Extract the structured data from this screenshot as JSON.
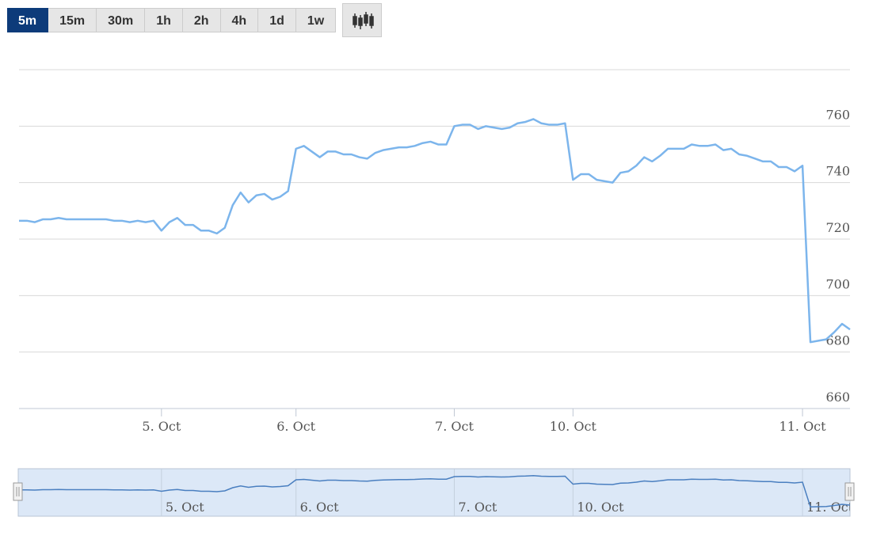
{
  "toolbar": {
    "buttons": [
      "5m",
      "15m",
      "30m",
      "1h",
      "2h",
      "4h",
      "1d",
      "1w"
    ]
  },
  "chart_data": {
    "type": "line",
    "color": "#7cb5ec",
    "categories": [
      null,
      null,
      null,
      null,
      null,
      null,
      null,
      null,
      null,
      null,
      null,
      null,
      null,
      null,
      null,
      null,
      null,
      null,
      "5. Oct",
      null,
      null,
      null,
      null,
      null,
      null,
      null,
      null,
      null,
      null,
      null,
      null,
      null,
      null,
      null,
      null,
      "6. Oct",
      null,
      null,
      null,
      null,
      null,
      null,
      null,
      null,
      null,
      null,
      null,
      null,
      null,
      null,
      null,
      null,
      null,
      null,
      null,
      "7. Oct",
      null,
      null,
      null,
      null,
      null,
      null,
      null,
      null,
      null,
      null,
      null,
      null,
      null,
      null,
      "10. Oct",
      null,
      null,
      null,
      null,
      null,
      null,
      null,
      null,
      null,
      null,
      null,
      null,
      null,
      null,
      null,
      null,
      null,
      null,
      null,
      null,
      null,
      null,
      null,
      null,
      null,
      null,
      null,
      null,
      "11. Oct",
      null,
      null,
      null,
      null,
      null,
      null
    ],
    "values": [
      726.5,
      726.5,
      726,
      727,
      727,
      727.5,
      727,
      727,
      727,
      727,
      727,
      727,
      726.5,
      726.5,
      726,
      726.5,
      726,
      726.5,
      723,
      726,
      727.5,
      725,
      725,
      723,
      723,
      722,
      724,
      732,
      736.5,
      733,
      735.5,
      736,
      734,
      735,
      737,
      752,
      753,
      751,
      749,
      751,
      751,
      750,
      750,
      749,
      748.5,
      750.5,
      751.5,
      752,
      752.5,
      752.5,
      753,
      754,
      754.5,
      753.5,
      753.5,
      760,
      760.5,
      760.5,
      759,
      760,
      759.5,
      759,
      759.5,
      761,
      761.5,
      762.5,
      761,
      760.5,
      760.5,
      761,
      741,
      743,
      743,
      741,
      740.5,
      740,
      743.5,
      744,
      746,
      749,
      747.5,
      749.5,
      752,
      752,
      752,
      753.5,
      753,
      753,
      753.5,
      751.5,
      752,
      750,
      749.5,
      748.5,
      747.5,
      747.5,
      745.5,
      745.5,
      744,
      746,
      683.5,
      684,
      684.5,
      687,
      690,
      688
    ],
    "ylim": [
      660,
      780
    ],
    "yticks": [
      660,
      680,
      700,
      720,
      740,
      760
    ],
    "grid": true
  }
}
